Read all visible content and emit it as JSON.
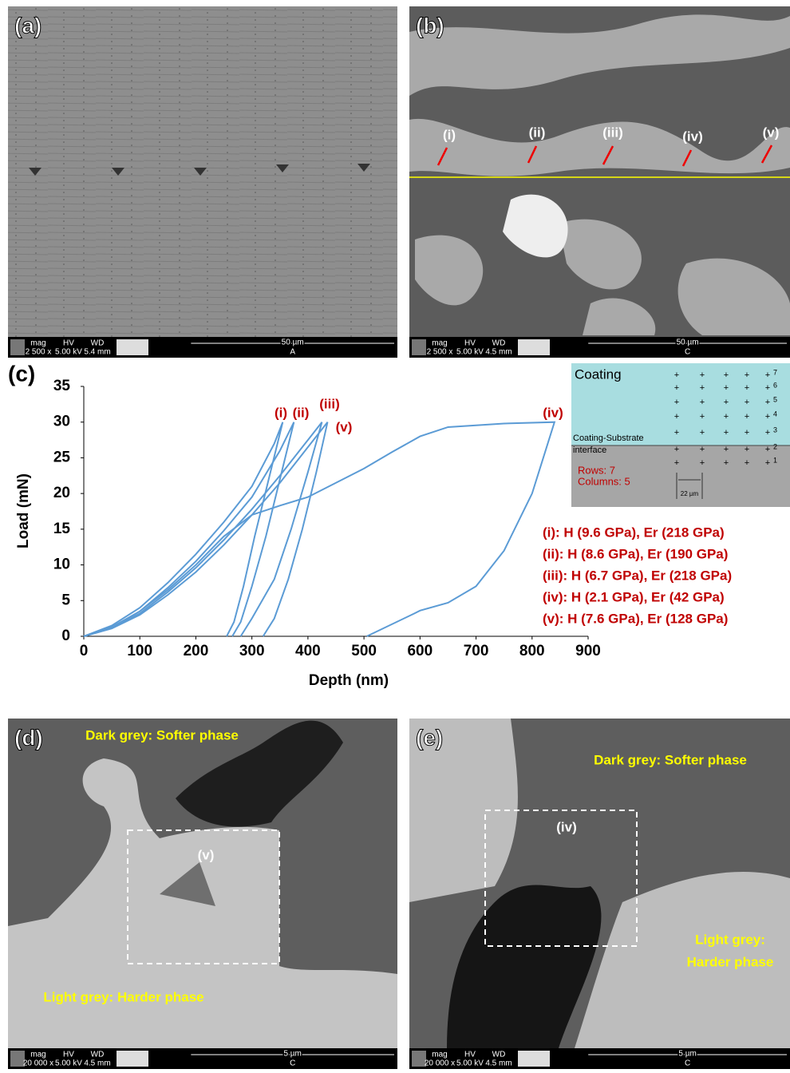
{
  "panels": [
    {
      "label": "(a)",
      "infobar": {
        "headers": [
          "mag",
          "HV",
          "WD"
        ],
        "values": [
          "2 500 x",
          "5.00 kV",
          "5.4 mm"
        ],
        "scale": "50 µm",
        "detector": "A"
      }
    },
    {
      "label": "(b)",
      "infobar": {
        "headers": [
          "mag",
          "HV",
          "WD"
        ],
        "values": [
          "2 500 x",
          "5.00 kV",
          "4.5 mm"
        ],
        "scale": "50 µm",
        "detector": "C"
      },
      "annotations": [
        "(i)",
        "(ii)",
        "(iii)",
        "(iv)",
        "(v)"
      ]
    },
    {
      "label": "(d)",
      "infobar": {
        "headers": [
          "mag",
          "HV",
          "WD"
        ],
        "values": [
          "20 000 x",
          "5.00 kV",
          "4.5 mm"
        ],
        "scale": "5 µm",
        "detector": "C"
      },
      "annotations": [
        "Dark grey: Softer phase",
        "(v)",
        "Light grey: Harder phase"
      ]
    },
    {
      "label": "(e)",
      "infobar": {
        "headers": [
          "mag",
          "HV",
          "WD"
        ],
        "values": [
          "20 000 x",
          "5.00 kV",
          "4.5 mm"
        ],
        "scale": "5 µm",
        "detector": "C"
      },
      "annotations": [
        "Dark grey: Softer phase",
        "(iv)",
        "Light grey:",
        "Harder phase"
      ]
    }
  ],
  "chart_data": {
    "type": "line",
    "panel_label": "(c)",
    "x_label": "Depth (nm)",
    "y_label": "Load (mN)",
    "xlim": [
      0,
      900
    ],
    "ylim": [
      0,
      35
    ],
    "xticks": [
      0,
      100,
      200,
      300,
      400,
      500,
      600,
      700,
      800,
      900
    ],
    "yticks": [
      0,
      5,
      10,
      15,
      20,
      25,
      30,
      35
    ],
    "series": [
      {
        "name": "(i)",
        "color": "#5b9bd5",
        "x": [
          0,
          50,
          100,
          150,
          200,
          250,
          300,
          340,
          355,
          330,
          305,
          285,
          268,
          255
        ],
        "y": [
          0,
          1.5,
          4,
          7.5,
          11.5,
          16,
          21,
          27,
          30,
          22,
          14,
          7,
          2,
          0
        ]
      },
      {
        "name": "(ii)",
        "color": "#5b9bd5",
        "x": [
          0,
          50,
          100,
          150,
          200,
          250,
          300,
          350,
          375,
          350,
          325,
          300,
          280,
          265
        ],
        "y": [
          0,
          1.3,
          3.5,
          6.8,
          10.5,
          14.8,
          19.5,
          26,
          30,
          22,
          14,
          7,
          2,
          0
        ]
      },
      {
        "name": "(iii)",
        "color": "#5b9bd5",
        "x": [
          0,
          50,
          100,
          150,
          200,
          250,
          300,
          350,
          400,
          425,
          400,
          370,
          340,
          300,
          280
        ],
        "y": [
          0,
          1.2,
          3.2,
          6.2,
          9.6,
          13.5,
          17.8,
          22.5,
          27.5,
          30,
          23,
          15,
          8,
          2.5,
          0
        ]
      },
      {
        "name": "(v)",
        "color": "#5b9bd5",
        "x": [
          0,
          50,
          100,
          150,
          200,
          250,
          300,
          350,
          400,
          435,
          415,
          390,
          365,
          340,
          320
        ],
        "y": [
          0,
          1.1,
          3,
          5.8,
          9,
          12.8,
          17,
          21.5,
          26.5,
          30,
          23,
          15,
          8,
          2.5,
          0
        ]
      },
      {
        "name": "(iv)",
        "color": "#5b9bd5",
        "x": [
          0,
          50,
          100,
          150,
          200,
          250,
          300,
          350,
          400,
          450,
          500,
          550,
          600,
          650,
          750,
          840,
          820,
          800,
          750,
          700,
          650,
          600,
          590,
          505
        ],
        "y": [
          0,
          1.2,
          3.5,
          6.5,
          10,
          14,
          17,
          18.3,
          19.5,
          21.5,
          23.5,
          25.8,
          28,
          29.3,
          29.8,
          30,
          25,
          20,
          12,
          7,
          4.7,
          3.6,
          3.2,
          0
        ]
      }
    ],
    "results": [
      "(i): H (9.6 GPa), Er (218 GPa)",
      "(ii): H (8.6 GPa), Er (190 GPa)",
      "(iii): H (6.7 GPa), Er (218 GPa)",
      "(iv): H (2.1 GPa), Er (42 GPa)",
      "(v): H (7.6 GPa), Er (128 GPa)"
    ],
    "inset": {
      "coating": "Coating",
      "interface_1": "Coating-Substrate",
      "interface_2": "interface",
      "rows": "Rows: 7",
      "columns": "Columns: 5",
      "spacing": "22 µm",
      "row_numbers": [
        "7",
        "6",
        "5",
        "4",
        "3",
        "2",
        "1"
      ]
    }
  }
}
